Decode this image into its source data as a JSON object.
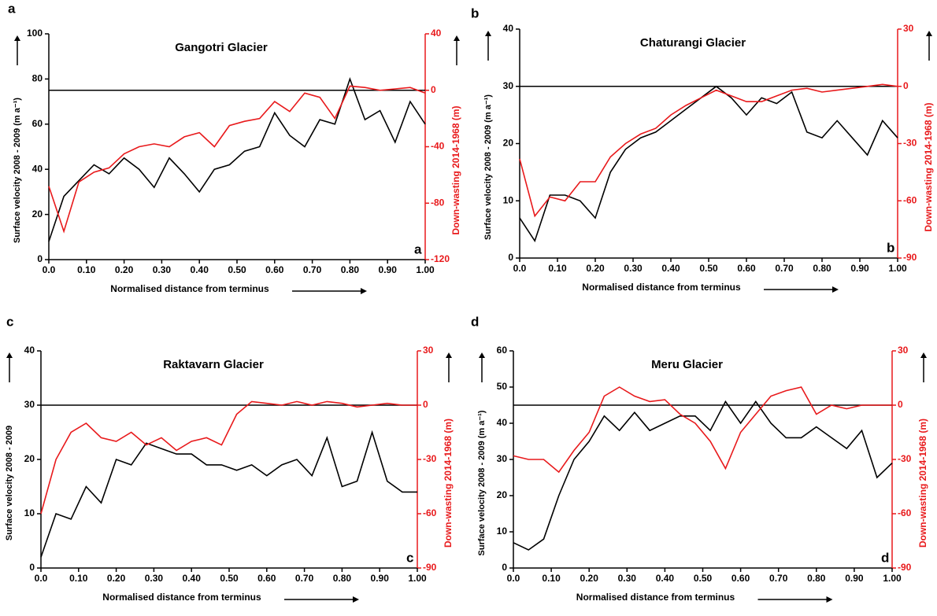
{
  "chart_data": [
    {
      "type": "line",
      "panel_label": "a",
      "title": "Gangotri Glacier",
      "xlabel": "Normalised distance from terminus",
      "ylabel": "Surface velocity 2008 - 2009 (m a⁻¹)",
      "y2label": "Down-wasting 2014-1968 (m)",
      "x": [
        0,
        0.04,
        0.08,
        0.12,
        0.16,
        0.2,
        0.24,
        0.28,
        0.32,
        0.36,
        0.4,
        0.44,
        0.48,
        0.52,
        0.56,
        0.6,
        0.64,
        0.68,
        0.72,
        0.76,
        0.8,
        0.84,
        0.88,
        0.92,
        0.96,
        1
      ],
      "series": [
        {
          "color": "#000000",
          "values": [
            8,
            28,
            35,
            42,
            38,
            45,
            40,
            32,
            45,
            38,
            30,
            40,
            42,
            48,
            50,
            65,
            55,
            50,
            62,
            60,
            80,
            62,
            66,
            52,
            70,
            60
          ]
        },
        {
          "color": "#e8191b",
          "axis": "y2",
          "values": [
            -68,
            -100,
            -65,
            -58,
            -55,
            -45,
            -40,
            -38,
            -40,
            -33,
            -30,
            -40,
            -25,
            -22,
            -20,
            -8,
            -15,
            -2,
            -5,
            -20,
            3,
            2,
            0,
            1,
            2,
            -2
          ]
        }
      ],
      "hline_y2": 0,
      "xlim": [
        0,
        1
      ],
      "xticks": [
        {
          "value": 0,
          "label": "0.0"
        },
        {
          "value": 0.1,
          "label": "0.10"
        },
        {
          "value": 0.2,
          "label": "0.20"
        },
        {
          "value": 0.3,
          "label": "0.30"
        },
        {
          "value": 0.4,
          "label": "0.40"
        },
        {
          "value": 0.5,
          "label": "0.50"
        },
        {
          "value": 0.6,
          "label": "0.60"
        },
        {
          "value": 0.7,
          "label": "0.70"
        },
        {
          "value": 0.8,
          "label": "0.80"
        },
        {
          "value": 0.9,
          "label": "0.90"
        },
        {
          "value": 1,
          "label": "1.00"
        }
      ],
      "ylim": [
        0,
        100
      ],
      "yticks": [
        0,
        20,
        40,
        60,
        80,
        100
      ],
      "y2lim": [
        -120,
        40
      ],
      "y2ticks": [
        -120,
        -80,
        -40,
        0,
        40
      ]
    },
    {
      "type": "line",
      "panel_label": "b",
      "title": "Chaturangi Glacier",
      "xlabel": "Normalised distance from terminus",
      "ylabel": "Surface velocity 2008 - 2009 (m a⁻¹)",
      "y2label": "Down-wasting 2014-1968 (m)",
      "x": [
        0,
        0.04,
        0.08,
        0.12,
        0.16,
        0.2,
        0.24,
        0.28,
        0.32,
        0.36,
        0.4,
        0.44,
        0.48,
        0.52,
        0.56,
        0.6,
        0.64,
        0.68,
        0.72,
        0.76,
        0.8,
        0.84,
        0.88,
        0.92,
        0.96,
        1
      ],
      "series": [
        {
          "color": "#000000",
          "values": [
            7,
            3,
            11,
            11,
            10,
            7,
            15,
            19,
            21,
            22,
            24,
            26,
            28,
            30,
            28,
            25,
            28,
            27,
            29,
            22,
            21,
            24,
            21,
            18,
            24,
            21
          ]
        },
        {
          "color": "#e8191b",
          "axis": "y2",
          "values": [
            -38,
            -68,
            -58,
            -60,
            -50,
            -50,
            -37,
            -30,
            -25,
            -22,
            -15,
            -10,
            -6,
            -2,
            -5,
            -8,
            -8,
            -5,
            -2,
            -1,
            -3,
            -2,
            -1,
            0,
            1,
            0
          ]
        }
      ],
      "hline_y2": 0,
      "xlim": [
        0,
        1
      ],
      "xticks": [
        {
          "value": 0,
          "label": "0.0"
        },
        {
          "value": 0.1,
          "label": "0.10"
        },
        {
          "value": 0.2,
          "label": "0.20"
        },
        {
          "value": 0.3,
          "label": "0.30"
        },
        {
          "value": 0.4,
          "label": "0.40"
        },
        {
          "value": 0.5,
          "label": "0.50"
        },
        {
          "value": 0.6,
          "label": "0.60"
        },
        {
          "value": 0.7,
          "label": "0.70"
        },
        {
          "value": 0.8,
          "label": "0.80"
        },
        {
          "value": 0.9,
          "label": "0.90"
        },
        {
          "value": 1,
          "label": "1.00"
        }
      ],
      "ylim": [
        0,
        40
      ],
      "yticks": [
        0,
        10,
        20,
        30,
        40
      ],
      "y2lim": [
        -90,
        30
      ],
      "y2ticks": [
        -90,
        -60,
        -30,
        0,
        30
      ]
    },
    {
      "type": "line",
      "panel_label": "c",
      "title": "Raktavarn Glacier",
      "xlabel": "Normalised distance from terminus",
      "ylabel": "Surface velocity 2008 - 2009",
      "y2label": "Down-wasting 2014-1968 (m)",
      "x": [
        0,
        0.04,
        0.08,
        0.12,
        0.16,
        0.2,
        0.24,
        0.28,
        0.32,
        0.36,
        0.4,
        0.44,
        0.48,
        0.52,
        0.56,
        0.6,
        0.64,
        0.68,
        0.72,
        0.76,
        0.8,
        0.84,
        0.88,
        0.92,
        0.96,
        1
      ],
      "series": [
        {
          "color": "#000000",
          "values": [
            2,
            10,
            9,
            15,
            12,
            20,
            19,
            23,
            22,
            21,
            21,
            19,
            19,
            18,
            19,
            17,
            19,
            20,
            17,
            24,
            15,
            16,
            25,
            16,
            14,
            14
          ]
        },
        {
          "color": "#e8191b",
          "axis": "y2",
          "values": [
            -60,
            -30,
            -15,
            -10,
            -18,
            -20,
            -15,
            -22,
            -18,
            -25,
            -20,
            -18,
            -22,
            -5,
            2,
            1,
            0,
            2,
            0,
            2,
            1,
            -1,
            0,
            1,
            0,
            0
          ]
        }
      ],
      "hline_y2": 0,
      "xlim": [
        0,
        1
      ],
      "xticks": [
        {
          "value": 0,
          "label": "0.0"
        },
        {
          "value": 0.1,
          "label": "0.10"
        },
        {
          "value": 0.2,
          "label": "0.20"
        },
        {
          "value": 0.3,
          "label": "0.30"
        },
        {
          "value": 0.4,
          "label": "0.40"
        },
        {
          "value": 0.5,
          "label": "0.50"
        },
        {
          "value": 0.6,
          "label": "0.60"
        },
        {
          "value": 0.7,
          "label": "0.70"
        },
        {
          "value": 0.8,
          "label": "0.80"
        },
        {
          "value": 0.9,
          "label": "0.90"
        },
        {
          "value": 1,
          "label": "1.00"
        }
      ],
      "ylim": [
        0,
        40
      ],
      "yticks": [
        0,
        10,
        20,
        30,
        40
      ],
      "y2lim": [
        -90,
        30
      ],
      "y2ticks": [
        -90,
        -60,
        -30,
        0,
        30
      ]
    },
    {
      "type": "line",
      "panel_label": "d",
      "title": "Meru Glacier",
      "xlabel": "Normalised distance from terminus",
      "ylabel": "Surface velocity 2008 - 2009 (m a⁻¹)",
      "y2label": "Down-wasting 2014-1968 (m)",
      "x": [
        0,
        0.04,
        0.08,
        0.12,
        0.16,
        0.2,
        0.24,
        0.28,
        0.32,
        0.36,
        0.4,
        0.44,
        0.48,
        0.52,
        0.56,
        0.6,
        0.64,
        0.68,
        0.72,
        0.76,
        0.8,
        0.84,
        0.88,
        0.92,
        0.96,
        1
      ],
      "series": [
        {
          "color": "#000000",
          "values": [
            7,
            5,
            8,
            20,
            30,
            35,
            42,
            38,
            43,
            38,
            40,
            42,
            42,
            38,
            46,
            40,
            46,
            40,
            36,
            36,
            39,
            36,
            33,
            38,
            25,
            29
          ]
        },
        {
          "color": "#e8191b",
          "axis": "y2",
          "values": [
            -28,
            -30,
            -30,
            -37,
            -25,
            -15,
            5,
            10,
            5,
            2,
            3,
            -5,
            -10,
            -20,
            -35,
            -15,
            -5,
            5,
            8,
            10,
            -5,
            0,
            -2,
            0,
            0,
            0
          ]
        }
      ],
      "hline_y2": 0,
      "xlim": [
        0,
        1
      ],
      "xticks": [
        {
          "value": 0,
          "label": "0.0"
        },
        {
          "value": 0.1,
          "label": "0.10"
        },
        {
          "value": 0.2,
          "label": "0.20"
        },
        {
          "value": 0.3,
          "label": "0.30"
        },
        {
          "value": 0.4,
          "label": "0.40"
        },
        {
          "value": 0.5,
          "label": "0.50"
        },
        {
          "value": 0.6,
          "label": "0.60"
        },
        {
          "value": 0.7,
          "label": "0.70"
        },
        {
          "value": 0.8,
          "label": "0.80"
        },
        {
          "value": 0.9,
          "label": "0.90"
        },
        {
          "value": 1,
          "label": "1.00"
        }
      ],
      "ylim": [
        0,
        60
      ],
      "yticks": [
        0,
        10,
        20,
        30,
        40,
        50,
        60
      ],
      "y2lim": [
        -90,
        30
      ],
      "y2ticks": [
        -90,
        -60,
        -30,
        0,
        30
      ]
    }
  ]
}
